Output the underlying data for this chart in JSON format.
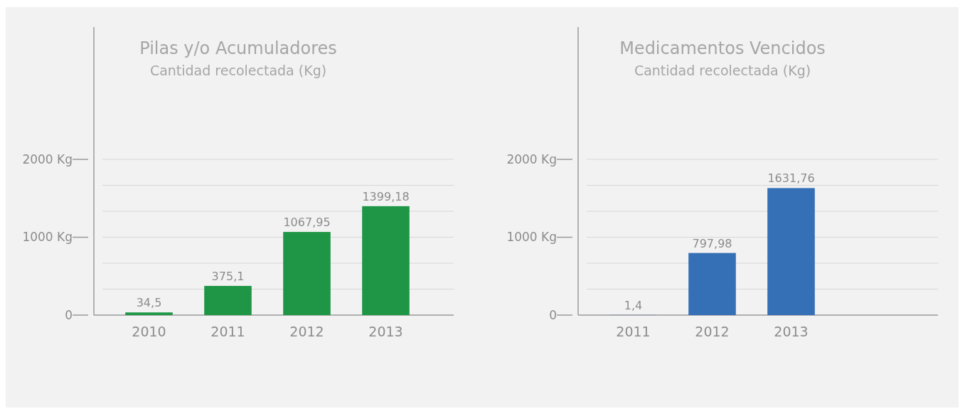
{
  "chart_data": [
    {
      "type": "bar",
      "title": "Pilas y/o Acumuladores",
      "subtitle": "Cantidad recolectada (Kg)",
      "categories": [
        "2010",
        "2011",
        "2012",
        "2013"
      ],
      "values": [
        34.5,
        375.1,
        1067.95,
        1399.18
      ],
      "color": "#1e9645",
      "value_labels": [
        "34,5",
        "375,1",
        "1067,95",
        "1399,18"
      ],
      "ylim": [
        0,
        3700
      ],
      "yticks": [
        {
          "value": 0,
          "label": "0"
        },
        {
          "value": 333.33,
          "label": null
        },
        {
          "value": 666.67,
          "label": null
        },
        {
          "value": 1000,
          "label": "1000 Kg"
        },
        {
          "value": 1333.33,
          "label": null
        },
        {
          "value": 1666.67,
          "label": null
        },
        {
          "value": 2000,
          "label": "2000 Kg"
        }
      ],
      "grid": "y"
    },
    {
      "type": "bar",
      "title": "Medicamentos Vencidos",
      "subtitle": "Cantidad recolectada (Kg)",
      "categories": [
        "2011",
        "2012",
        "2013",
        null
      ],
      "values": [
        1.4,
        797.98,
        1631.76,
        null
      ],
      "color": "#356fb6",
      "value_labels": [
        "1,4",
        "797,98",
        "1631,76",
        null
      ],
      "ylim": [
        0,
        3700
      ],
      "yticks": [
        {
          "value": 0,
          "label": "0"
        },
        {
          "value": 333.33,
          "label": null
        },
        {
          "value": 666.67,
          "label": null
        },
        {
          "value": 1000,
          "label": "1000 Kg"
        },
        {
          "value": 1333.33,
          "label": null
        },
        {
          "value": 1666.67,
          "label": null
        },
        {
          "value": 2000,
          "label": "2000 Kg"
        }
      ],
      "grid": "y"
    }
  ]
}
